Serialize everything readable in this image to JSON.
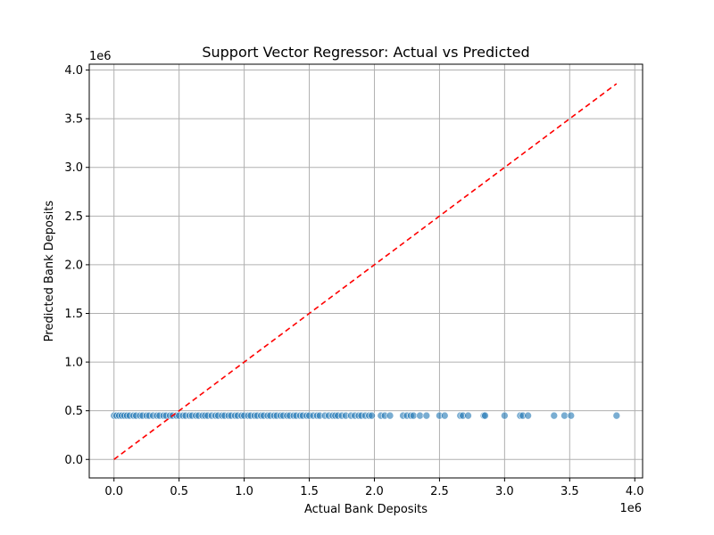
{
  "chart_data": {
    "type": "scatter",
    "title": "Support Vector Regressor: Actual vs Predicted",
    "xlabel": "Actual Bank Deposits",
    "ylabel": "Predicted Bank Deposits",
    "x_offset_label": "1e6",
    "y_offset_label": "1e6",
    "xlim": [
      -0.19,
      4.06
    ],
    "ylim": [
      -0.19,
      4.06
    ],
    "xticks": [
      0.0,
      0.5,
      1.0,
      1.5,
      2.0,
      2.5,
      3.0,
      3.5,
      4.0
    ],
    "yticks": [
      0.0,
      0.5,
      1.0,
      1.5,
      2.0,
      2.5,
      3.0,
      3.5,
      4.0
    ],
    "xtick_labels": [
      "0.0",
      "0.5",
      "1.0",
      "1.5",
      "2.0",
      "2.5",
      "3.0",
      "3.5",
      "4.0"
    ],
    "ytick_labels": [
      "0.0",
      "0.5",
      "1.0",
      "1.5",
      "2.0",
      "2.5",
      "3.0",
      "3.5",
      "4.0"
    ],
    "grid": true,
    "series": [
      {
        "kind": "points",
        "color": "#1f77b4",
        "y_constant": 0.45,
        "x": [
          0.0,
          0.02,
          0.04,
          0.06,
          0.08,
          0.1,
          0.12,
          0.15,
          0.17,
          0.2,
          0.22,
          0.25,
          0.27,
          0.3,
          0.33,
          0.35,
          0.38,
          0.4,
          0.43,
          0.45,
          0.48,
          0.5,
          0.53,
          0.55,
          0.58,
          0.6,
          0.63,
          0.65,
          0.68,
          0.7,
          0.72,
          0.75,
          0.78,
          0.8,
          0.83,
          0.85,
          0.88,
          0.9,
          0.93,
          0.95,
          0.98,
          1.0,
          1.03,
          1.05,
          1.08,
          1.1,
          1.13,
          1.15,
          1.18,
          1.2,
          1.23,
          1.25,
          1.28,
          1.3,
          1.33,
          1.35,
          1.38,
          1.4,
          1.43,
          1.45,
          1.48,
          1.5,
          1.53,
          1.56,
          1.58,
          1.62,
          1.65,
          1.68,
          1.7,
          1.72,
          1.75,
          1.78,
          1.82,
          1.85,
          1.88,
          1.9,
          1.93,
          1.96,
          1.98,
          2.05,
          2.08,
          2.12,
          2.22,
          2.25,
          2.28,
          2.3,
          2.35,
          2.4,
          2.5,
          2.54,
          2.66,
          2.68,
          2.72,
          2.84,
          2.85,
          3.0,
          3.12,
          3.14,
          3.18,
          3.38,
          3.46,
          3.51,
          3.86
        ]
      },
      {
        "kind": "reference-line",
        "color": "#ff0000",
        "style": "dashed",
        "x": [
          0.0,
          3.86
        ],
        "y": [
          0.0,
          3.86
        ]
      }
    ]
  }
}
